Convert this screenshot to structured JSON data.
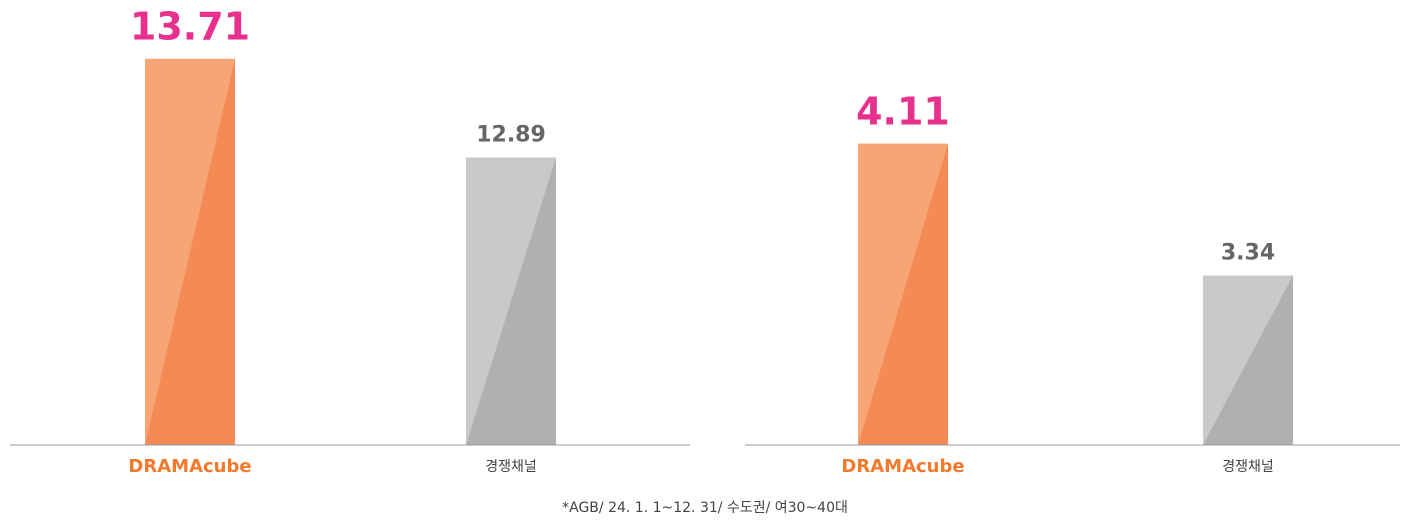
{
  "chart_data": [
    {
      "type": "bar",
      "categories": [
        "DRAMAcube",
        "경쟁채널"
      ],
      "values": [
        13.71,
        12.89
      ],
      "colors": [
        "#f48a55",
        "#b0b0b1"
      ],
      "highlight_colors": [
        "#f7a574",
        "#c9c9ca"
      ],
      "label_colors": [
        "#e8318f",
        "#666666"
      ],
      "category_colors": [
        "#f27a2c",
        "#444444"
      ],
      "ylim": [
        10.5,
        14.2
      ]
    },
    {
      "type": "bar",
      "categories": [
        "DRAMAcube",
        "경쟁채널"
      ],
      "values": [
        4.11,
        3.34
      ],
      "colors": [
        "#f48a55",
        "#b0b0b1"
      ],
      "highlight_colors": [
        "#f7a574",
        "#c9c9ca"
      ],
      "label_colors": [
        "#e8318f",
        "#666666"
      ],
      "category_colors": [
        "#f27a2c",
        "#444444"
      ],
      "ylim": [
        2.35,
        4.95
      ]
    }
  ],
  "footnote": "*AGB/ 24. 1. 1~12. 31/ 수도권/ 여30~40대"
}
